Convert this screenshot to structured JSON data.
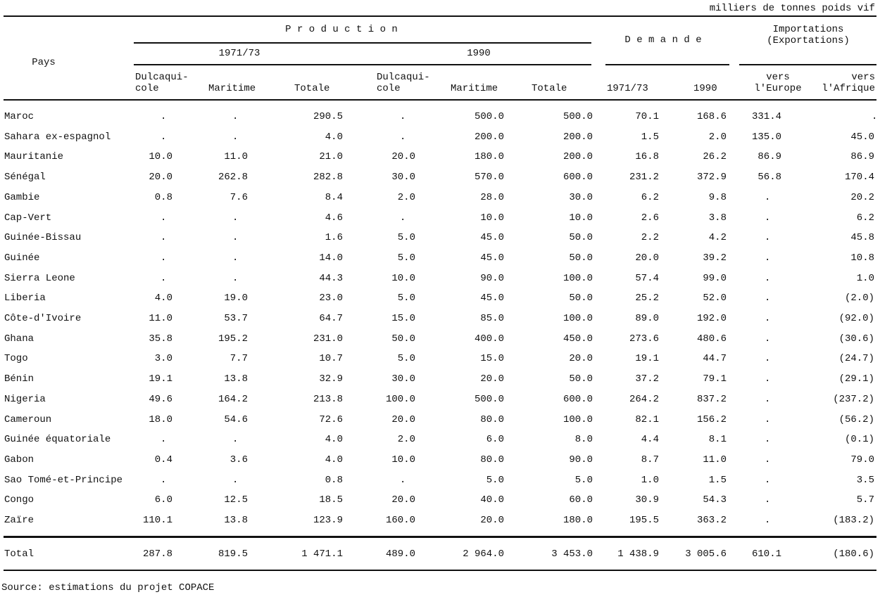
{
  "unit": "milliers de tonnes poids vif",
  "header": {
    "country": "Pays",
    "production": "P r o d u c t i o n",
    "period1": "1971/73",
    "period2": "1990",
    "demand": "D e m a n d e",
    "trade": [
      "Importations",
      "(Exportations)"
    ],
    "columns": [
      [
        "Dulcaqui-",
        "cole"
      ],
      [
        "Maritime"
      ],
      [
        "Totale"
      ],
      [
        "Dulcaqui-",
        "cole"
      ],
      [
        "Maritime"
      ],
      [
        "Totale"
      ],
      [
        "1971/73"
      ],
      [
        "1990"
      ],
      [
        "vers",
        "l'Europe"
      ],
      [
        "vers",
        "l'Afrique"
      ]
    ]
  },
  "rows": [
    [
      "Maroc",
      ".",
      ".",
      "290.5",
      ".",
      "500.0",
      "500.0",
      "70.1",
      "168.6",
      "331.4",
      "."
    ],
    [
      "Sahara ex-espagnol",
      ".",
      ".",
      "4.0",
      ".",
      "200.0",
      "200.0",
      "1.5",
      "2.0",
      "135.0",
      "45.0"
    ],
    [
      "Mauritanie",
      "10.0",
      "11.0",
      "21.0",
      "20.0",
      "180.0",
      "200.0",
      "16.8",
      "26.2",
      "86.9",
      "86.9"
    ],
    [
      "Sénégal",
      "20.0",
      "262.8",
      "282.8",
      "30.0",
      "570.0",
      "600.0",
      "231.2",
      "372.9",
      "56.8",
      "170.4"
    ],
    [
      "Gambie",
      "0.8",
      "7.6",
      "8.4",
      "2.0",
      "28.0",
      "30.0",
      "6.2",
      "9.8",
      ".",
      "20.2"
    ],
    [
      "Cap-Vert",
      ".",
      ".",
      "4.6",
      ".",
      "10.0",
      "10.0",
      "2.6",
      "3.8",
      ".",
      "6.2"
    ],
    [
      "Guinée-Bissau",
      ".",
      ".",
      "1.6",
      "5.0",
      "45.0",
      "50.0",
      "2.2",
      "4.2",
      ".",
      "45.8"
    ],
    [
      "Guinée",
      ".",
      ".",
      "14.0",
      "5.0",
      "45.0",
      "50.0",
      "20.0",
      "39.2",
      ".",
      "10.8"
    ],
    [
      "Sierra Leone",
      ".",
      ".",
      "44.3",
      "10.0",
      "90.0",
      "100.0",
      "57.4",
      "99.0",
      ".",
      "1.0"
    ],
    [
      "Liberia",
      "4.0",
      "19.0",
      "23.0",
      "5.0",
      "45.0",
      "50.0",
      "25.2",
      "52.0",
      ".",
      "(2.0)"
    ],
    [
      "Côte-d'Ivoire",
      "11.0",
      "53.7",
      "64.7",
      "15.0",
      "85.0",
      "100.0",
      "89.0",
      "192.0",
      ".",
      "(92.0)"
    ],
    [
      "Ghana",
      "35.8",
      "195.2",
      "231.0",
      "50.0",
      "400.0",
      "450.0",
      "273.6",
      "480.6",
      ".",
      "(30.6)"
    ],
    [
      "Togo",
      "3.0",
      "7.7",
      "10.7",
      "5.0",
      "15.0",
      "20.0",
      "19.1",
      "44.7",
      ".",
      "(24.7)"
    ],
    [
      "Bénin",
      "19.1",
      "13.8",
      "32.9",
      "30.0",
      "20.0",
      "50.0",
      "37.2",
      "79.1",
      ".",
      "(29.1)"
    ],
    [
      "Nigeria",
      "49.6",
      "164.2",
      "213.8",
      "100.0",
      "500.0",
      "600.0",
      "264.2",
      "837.2",
      ".",
      "(237.2)"
    ],
    [
      "Cameroun",
      "18.0",
      "54.6",
      "72.6",
      "20.0",
      "80.0",
      "100.0",
      "82.1",
      "156.2",
      ".",
      "(56.2)"
    ],
    [
      "Guinée équatoriale",
      ".",
      ".",
      "4.0",
      "2.0",
      "6.0",
      "8.0",
      "4.4",
      "8.1",
      ".",
      "(0.1)"
    ],
    [
      "Gabon",
      "0.4",
      "3.6",
      "4.0",
      "10.0",
      "80.0",
      "90.0",
      "8.7",
      "11.0",
      ".",
      "79.0"
    ],
    [
      "Sao Tomé-et-Principe",
      ".",
      ".",
      "0.8",
      ".",
      "5.0",
      "5.0",
      "1.0",
      "1.5",
      ".",
      "3.5"
    ],
    [
      "Congo",
      "6.0",
      "12.5",
      "18.5",
      "20.0",
      "40.0",
      "60.0",
      "30.9",
      "54.3",
      ".",
      "5.7"
    ],
    [
      "Zaïre",
      "110.1",
      "13.8",
      "123.9",
      "160.0",
      "20.0",
      "180.0",
      "195.5",
      "363.2",
      ".",
      "(183.2)"
    ]
  ],
  "total": [
    "Total",
    "287.8",
    "819.5",
    "1 471.1",
    "489.0",
    "2 964.0",
    "3 453.0",
    "1 438.9",
    "3 005.6",
    "610.1",
    "(180.6)"
  ],
  "source": "Source: estimations du projet COPACE"
}
